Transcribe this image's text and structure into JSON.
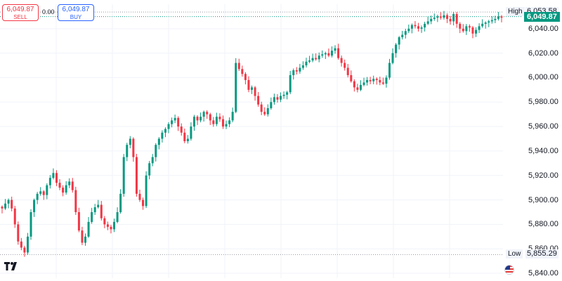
{
  "trade": {
    "sell_price": "6,049.87",
    "sell_label": "SELL",
    "buy_price": "6,049.87",
    "buy_label": "BUY",
    "spread": "0.00"
  },
  "markers": {
    "high_label": "High",
    "high_value": "6,053.58",
    "low_label": "Low",
    "low_value": "5,855.29",
    "last_price": "6,049.87"
  },
  "colors": {
    "up": "#089981",
    "down": "#f23645",
    "last": "#089981",
    "grid": "#f0f3fa"
  },
  "icons": {
    "logo": "tradingview-logo-icon",
    "flag": "us-flag-icon"
  },
  "chart_data": {
    "type": "candlestick",
    "y_ticks": [
      "6,040.00",
      "6,020.00",
      "6,000.00",
      "5,980.00",
      "5,960.00",
      "5,940.00",
      "5,920.00",
      "5,900.00",
      "5,880.00",
      "5,860.00",
      "5,840.00"
    ],
    "y_tick_values": [
      6040,
      6020,
      6000,
      5980,
      5960,
      5940,
      5920,
      5900,
      5880,
      5860,
      5840
    ],
    "ylim": [
      5836,
      6060
    ],
    "high": 6053.58,
    "low": 5855.29,
    "last": 6049.87,
    "close_path": [
      5893,
      5897,
      5900,
      5893,
      5880,
      5866,
      5861,
      5857,
      5870,
      5890,
      5900,
      5905,
      5907,
      5904,
      5912,
      5918,
      5922,
      5914,
      5910,
      5906,
      5912,
      5915,
      5908,
      5890,
      5875,
      5865,
      5870,
      5882,
      5890,
      5894,
      5896,
      5885,
      5880,
      5878,
      5876,
      5882,
      5890,
      5905,
      5935,
      5945,
      5950,
      5935,
      5905,
      5900,
      5895,
      5920,
      5930,
      5935,
      5945,
      5950,
      5955,
      5958,
      5962,
      5965,
      5967,
      5960,
      5955,
      5948,
      5950,
      5960,
      5968,
      5965,
      5968,
      5972,
      5970,
      5965,
      5962,
      5968,
      5966,
      5960,
      5962,
      5965,
      5972,
      6012,
      6007,
      6003,
      5998,
      5990,
      5992,
      5985,
      5978,
      5972,
      5970,
      5975,
      5980,
      5984,
      5982,
      5985,
      5986,
      5988,
      6002,
      6006,
      6005,
      6008,
      6010,
      6013,
      6014,
      6016,
      6015,
      6018,
      6019,
      6020,
      6018,
      6022,
      6024,
      6016,
      6012,
      6008,
      6002,
      5997,
      5992,
      5990,
      5994,
      5996,
      5998,
      5997,
      5999,
      5998,
      5996,
      5995,
      6000,
      6012,
      6020,
      6027,
      6033,
      6035,
      6038,
      6040,
      6043,
      6042,
      6040,
      6041,
      6044,
      6046,
      6048,
      6049,
      6050,
      6049,
      6051,
      6048,
      6046,
      6052,
      6044,
      6040,
      6038,
      6042,
      6041,
      6036,
      6039,
      6042,
      6044,
      6045,
      6046,
      6047,
      6048,
      6050,
      6049
    ]
  }
}
